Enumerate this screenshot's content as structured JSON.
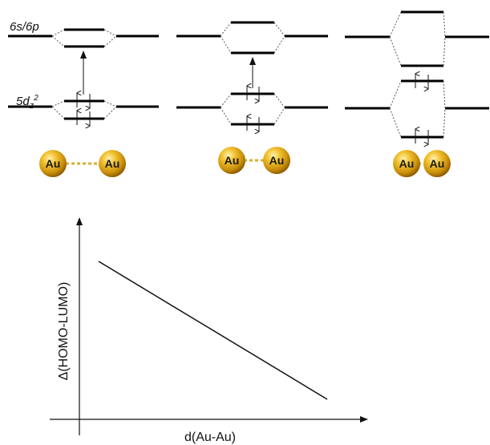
{
  "labels": {
    "orbital_6s6p": "6s/6p",
    "orbital_5d": "5d",
    "orbital_5d_sub": "z",
    "orbital_5d_sup": "2"
  },
  "atoms": {
    "symbol": "Au",
    "gold_color": "#d4a017",
    "bond_color": "#c8a82a"
  },
  "graph": {
    "y_label": "Δ(HOMO-LUMO)",
    "x_label": "d(Au-Au)"
  }
}
